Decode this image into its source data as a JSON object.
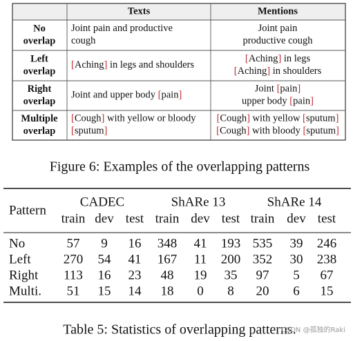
{
  "figure": {
    "headers": [
      "Texts",
      "Mentions"
    ],
    "rows": [
      {
        "label": [
          "No",
          "overlap"
        ],
        "texts": [
          [
            "Joint pain and productive"
          ],
          [
            "cough"
          ]
        ],
        "mentions": [
          [
            "Joint pain"
          ],
          [
            "productive cough"
          ]
        ]
      },
      {
        "label": [
          "Left",
          "overlap"
        ],
        "texts": [
          [
            "[",
            "Aching",
            "]",
            " in legs and shoulders"
          ]
        ],
        "mentions": [
          [
            "[",
            "Aching",
            "]",
            " in legs"
          ],
          [
            "[",
            "Aching",
            "]",
            " in shoulders"
          ]
        ]
      },
      {
        "label": [
          "Right",
          "overlap"
        ],
        "texts": [
          [
            "Joint and upper body ",
            "[",
            "pain",
            "]"
          ]
        ],
        "mentions": [
          [
            "Joint ",
            "[",
            "pain",
            "]"
          ],
          [
            "upper body ",
            "[",
            "pain",
            "]"
          ]
        ]
      },
      {
        "label": [
          "Multiple",
          "overlap"
        ],
        "texts": [
          [
            "[",
            "Cough",
            "]",
            " with yellow or bloody"
          ],
          [
            "[",
            "sputum",
            "]"
          ]
        ],
        "mentions": [
          [
            "[",
            "Cough",
            "]",
            " with yellow ",
            "[",
            "sputum",
            "]"
          ],
          [
            "[",
            "Cough",
            "]",
            " with bloody ",
            "[",
            "sputum",
            "]"
          ]
        ]
      }
    ],
    "caption": "Figure 6: Examples of the overlapping patterns"
  },
  "table": {
    "pattern_header": "Pattern",
    "groups": [
      {
        "name": "CADEC",
        "columns": [
          "train",
          "dev",
          "test"
        ]
      },
      {
        "name": "ShARe 13",
        "columns": [
          "train",
          "dev",
          "test"
        ]
      },
      {
        "name": "ShARe 14",
        "columns": [
          "train",
          "dev",
          "test"
        ]
      }
    ],
    "rows": [
      {
        "label": "No",
        "values": [
          57,
          9,
          16,
          348,
          41,
          193,
          535,
          39,
          246
        ]
      },
      {
        "label": "Left",
        "values": [
          270,
          54,
          41,
          167,
          11,
          200,
          352,
          30,
          238
        ]
      },
      {
        "label": "Right",
        "values": [
          113,
          16,
          23,
          48,
          19,
          35,
          97,
          5,
          67
        ]
      },
      {
        "label": "Multi.",
        "values": [
          51,
          15,
          14,
          18,
          0,
          8,
          20,
          6,
          15
        ]
      }
    ],
    "caption": "Table 5: Statistics of overlapping patterns."
  },
  "watermark": "CSDN @孤独的Raki"
}
